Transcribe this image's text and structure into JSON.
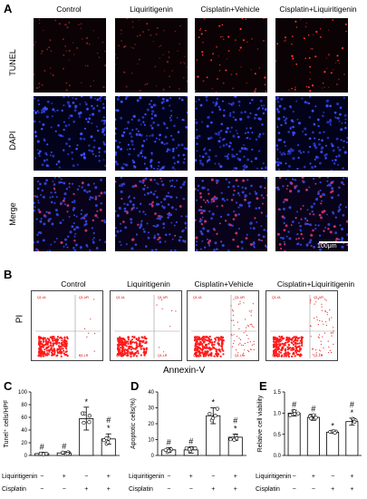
{
  "panels": {
    "A": "A",
    "B": "B",
    "C": "C",
    "D": "D",
    "E": "E"
  },
  "groups": [
    "Control",
    "Liquiritigenin",
    "Cisplatin+Vehicle",
    "Cisplatin+Liquiritigenin"
  ],
  "rows_A": [
    "TUNEL",
    "DAPI",
    "Merge"
  ],
  "scale_bar": "100μm",
  "flow": {
    "ylabel": "PI",
    "xlabel": "Annexin-V",
    "quadrants": [
      "Q1-UL",
      "Q1-UR",
      "Q1-LL",
      "Q1-LR"
    ]
  },
  "bottom_labels": {
    "row1": "Liquiritigenin",
    "row2": "Cisplatin",
    "liq_signs": [
      "−",
      "+",
      "−",
      "+"
    ],
    "cis_signs": [
      "−",
      "−",
      "+",
      "+"
    ]
  },
  "chart_data": [
    {
      "type": "bar",
      "panel": "C",
      "ylabel": "Tunel⁺ cells/HPF",
      "ylim": [
        0,
        100
      ],
      "yticks": [
        "0",
        "20",
        "40",
        "60",
        "80",
        "100"
      ],
      "values": [
        3,
        4,
        58,
        26
      ],
      "errors": [
        2,
        2,
        18,
        8
      ],
      "marks": [
        [
          "#"
        ],
        [
          "#"
        ],
        [
          "*"
        ],
        [
          "#",
          "*"
        ]
      ]
    },
    {
      "type": "bar",
      "panel": "D",
      "ylabel": "Apoptotic cells(%)",
      "ylim": [
        0,
        40
      ],
      "yticks": [
        "0",
        "10",
        "20",
        "30",
        "40"
      ],
      "values": [
        3.5,
        3.5,
        25,
        11.5
      ],
      "errors": [
        1.5,
        2,
        5,
        2
      ],
      "marks": [
        [
          "#"
        ],
        [
          "#"
        ],
        [
          "*"
        ],
        [
          "#",
          "*"
        ]
      ]
    },
    {
      "type": "bar",
      "panel": "E",
      "ylabel": "Relative cell viability",
      "ylim": [
        0,
        1.5
      ],
      "yticks": [
        "0.0",
        "0.5",
        "1.0",
        "1.5"
      ],
      "values": [
        1.0,
        0.9,
        0.55,
        0.8
      ],
      "errors": [
        0.07,
        0.07,
        0.02,
        0.08
      ],
      "marks": [
        [
          "#"
        ],
        [
          "#"
        ],
        [
          "*"
        ],
        [
          "#",
          "*"
        ]
      ]
    }
  ]
}
